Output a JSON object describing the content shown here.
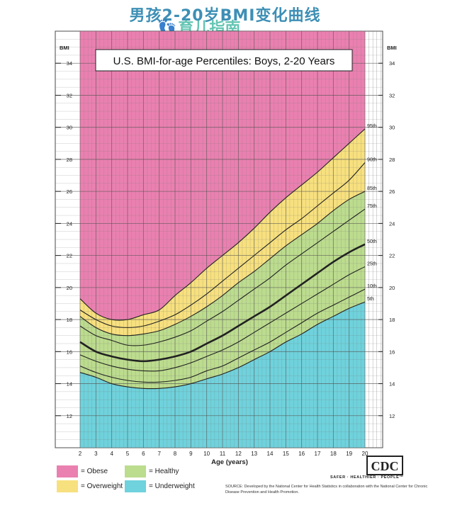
{
  "page_title": "男孩2-20岁BMI变化曲线",
  "watermark": "育儿指南",
  "chart_data": {
    "type": "line",
    "title": "U.S. BMI-for-age Percentiles: Boys, 2-20 Years",
    "xlabel": "Age (years)",
    "ylabel": "BMI",
    "xlim": [
      2,
      20
    ],
    "ylim": [
      10,
      36
    ],
    "x_ticks": [
      2,
      3,
      4,
      5,
      6,
      7,
      8,
      9,
      10,
      11,
      12,
      13,
      14,
      15,
      16,
      17,
      18,
      19,
      20
    ],
    "y_ticks": [
      12,
      14,
      16,
      18,
      20,
      22,
      24,
      26,
      28,
      30,
      32,
      34
    ],
    "x": [
      2,
      3,
      4,
      5,
      6,
      7,
      8,
      9,
      10,
      11,
      12,
      13,
      14,
      15,
      16,
      17,
      18,
      19,
      20
    ],
    "series": [
      {
        "name": "5th",
        "values": [
          14.7,
          14.4,
          14.0,
          13.8,
          13.7,
          13.7,
          13.8,
          14.0,
          14.3,
          14.6,
          15.0,
          15.5,
          16.0,
          16.6,
          17.1,
          17.7,
          18.2,
          18.7,
          19.1
        ]
      },
      {
        "name": "10th",
        "values": [
          15.1,
          14.7,
          14.4,
          14.2,
          14.1,
          14.1,
          14.2,
          14.4,
          14.8,
          15.1,
          15.6,
          16.1,
          16.6,
          17.2,
          17.8,
          18.4,
          18.9,
          19.4,
          19.9
        ]
      },
      {
        "name": "25th",
        "values": [
          15.8,
          15.4,
          15.1,
          14.9,
          14.8,
          14.8,
          15.0,
          15.3,
          15.7,
          16.1,
          16.6,
          17.2,
          17.8,
          18.4,
          19.0,
          19.6,
          20.2,
          20.8,
          21.3
        ]
      },
      {
        "name": "50th",
        "values": [
          16.6,
          16.0,
          15.7,
          15.5,
          15.4,
          15.5,
          15.7,
          16.0,
          16.5,
          17.0,
          17.6,
          18.2,
          18.8,
          19.5,
          20.2,
          20.9,
          21.6,
          22.2,
          22.7
        ]
      },
      {
        "name": "75th",
        "values": [
          17.6,
          17.0,
          16.7,
          16.4,
          16.4,
          16.6,
          16.9,
          17.3,
          17.9,
          18.5,
          19.2,
          19.9,
          20.6,
          21.4,
          22.1,
          22.8,
          23.5,
          24.2,
          24.9
        ]
      },
      {
        "name": "85th",
        "values": [
          18.2,
          17.5,
          17.1,
          17.0,
          17.1,
          17.3,
          17.7,
          18.2,
          18.8,
          19.5,
          20.3,
          21.0,
          21.8,
          22.6,
          23.3,
          24.0,
          24.8,
          25.5,
          26.0
        ]
      },
      {
        "name": "90th",
        "values": [
          18.6,
          18.0,
          17.6,
          17.5,
          17.6,
          17.9,
          18.3,
          18.9,
          19.6,
          20.4,
          21.2,
          22.0,
          22.8,
          23.6,
          24.3,
          25.1,
          25.9,
          26.7,
          27.8
        ]
      },
      {
        "name": "95th",
        "values": [
          19.3,
          18.4,
          18.0,
          18.0,
          18.3,
          18.6,
          19.5,
          20.3,
          21.2,
          22.0,
          22.8,
          23.7,
          24.7,
          25.6,
          26.4,
          27.2,
          28.1,
          29.0,
          29.9
        ]
      }
    ],
    "regions": [
      {
        "name": "Obese",
        "color": "#ea80b0",
        "from": "95th",
        "to": "top"
      },
      {
        "name": "Overweight",
        "color": "#f7e07e",
        "from": "85th",
        "to": "95th"
      },
      {
        "name": "Healthy",
        "color": "#bcdc8e",
        "from": "5th",
        "to": "85th"
      },
      {
        "name": "Underweight",
        "color": "#6fd2dc",
        "from": "bottom",
        "to": "5th"
      }
    ],
    "grid": true,
    "legend_position": "bottom-left"
  },
  "legend": [
    {
      "label": "= Obese",
      "color": "#ea80b0"
    },
    {
      "label": "= Healthy",
      "color": "#bcdc8e"
    },
    {
      "label": "= Overweight",
      "color": "#f7e07e"
    },
    {
      "label": "= Underweight",
      "color": "#6fd2dc"
    }
  ],
  "cdc_logo_text": "CDC",
  "cdc_tagline": "SAFER · HEALTHIER · PEOPLE™",
  "source_text": "SOURCE: Developed by the National Center for Health Statistics in collaboration with the National Center for Chronic Disease Prevention and Health Promotion."
}
